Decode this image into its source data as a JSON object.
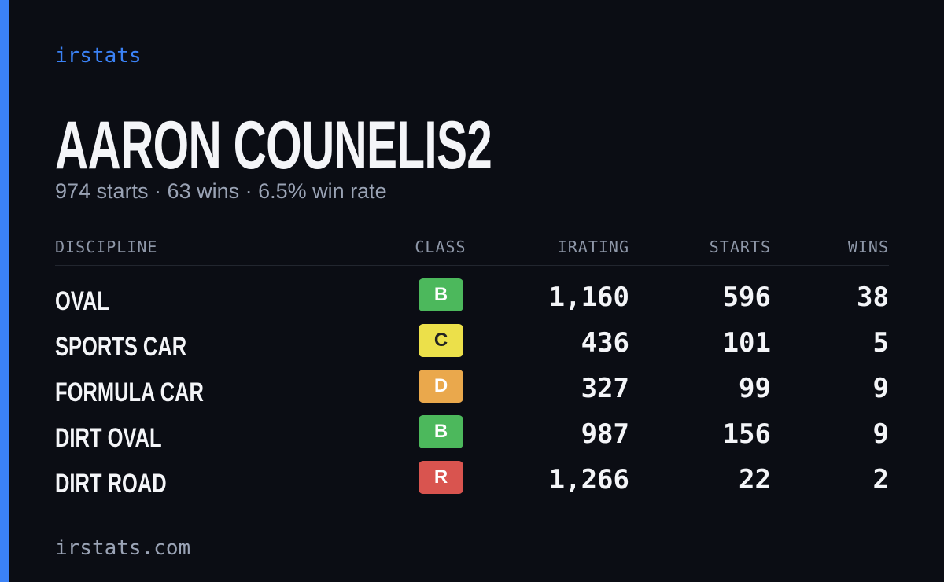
{
  "brand": "irstats",
  "title": "AARON COUNELIS2",
  "subtitle": "974 starts · 63 wins · 6.5% win rate",
  "table": {
    "headers": [
      "DISCIPLINE",
      "CLASS",
      "IRATING",
      "STARTS",
      "WINS"
    ],
    "rows": [
      [
        "OVAL",
        "B",
        "1,160",
        "596",
        "38"
      ],
      [
        "SPORTS CAR",
        "C",
        "436",
        "101",
        "5"
      ],
      [
        "FORMULA CAR",
        "D",
        "327",
        "99",
        "9"
      ],
      [
        "DIRT OVAL",
        "B",
        "987",
        "156",
        "9"
      ],
      [
        "DIRT ROAD",
        "R",
        "1,266",
        "22",
        "2"
      ]
    ],
    "class_colors": {
      "B": "#4cb85c",
      "C": "#ece04a",
      "D": "#eaa84c",
      "R": "#d9544f"
    }
  },
  "footer": "irstats.com"
}
